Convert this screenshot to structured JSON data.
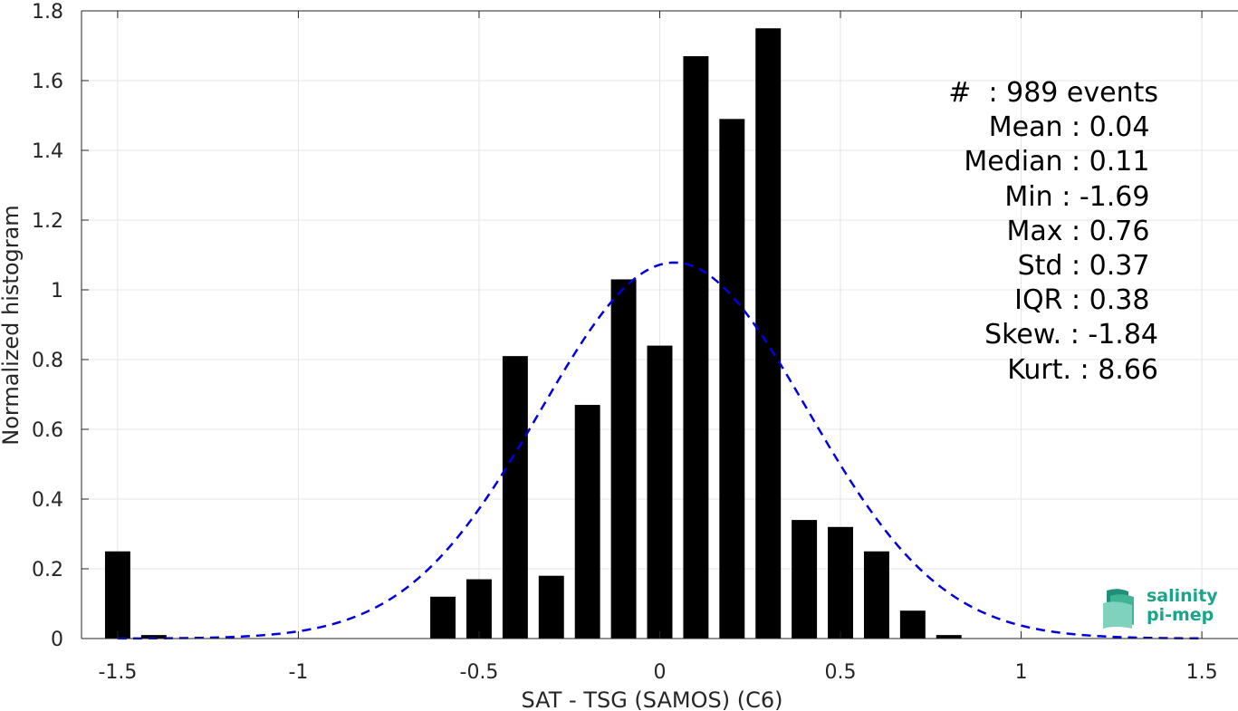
{
  "chart_data": {
    "type": "bar",
    "xlabel": "SAT - TSG (SAMOS) (C6)",
    "ylabel": "Normalized histogram",
    "xlim": [
      -1.6,
      1.6
    ],
    "ylim": [
      0,
      1.8
    ],
    "xticks": [
      -1.5,
      -1,
      -0.5,
      0,
      0.5,
      1,
      1.5
    ],
    "xtick_labels": [
      "-1.5",
      "-1",
      "-0.5",
      "0",
      "0.5",
      "1",
      "1.5"
    ],
    "yticks": [
      0,
      0.2,
      0.4,
      0.6,
      0.8,
      1,
      1.2,
      1.4,
      1.6,
      1.8
    ],
    "ytick_labels": [
      "0",
      "0.2",
      "0.4",
      "0.6",
      "0.8",
      "1",
      "1.2",
      "1.4",
      "1.6",
      "1.8"
    ],
    "grid": true,
    "bar_width": 0.07,
    "bars": {
      "x": [
        -1.5,
        -1.4,
        -0.6,
        -0.5,
        -0.4,
        -0.3,
        -0.2,
        -0.1,
        0.0,
        0.1,
        0.2,
        0.3,
        0.4,
        0.5,
        0.6,
        0.7,
        0.8
      ],
      "values": [
        0.25,
        0.01,
        0.12,
        0.17,
        0.81,
        0.18,
        0.67,
        1.03,
        0.84,
        1.67,
        1.49,
        1.75,
        0.34,
        0.32,
        0.25,
        0.08,
        0.01
      ]
    },
    "fit_curve": {
      "style": "dashed",
      "color": "#0000e0",
      "mean": 0.04,
      "std": 0.37,
      "x_range": [
        -1.5,
        1.5
      ]
    },
    "bar_color": "#000000"
  },
  "stats": [
    "#  : 989 events",
    "Mean : 0.04 ",
    "Median : 0.11 ",
    "Min : -1.69 ",
    "Max : 0.76 ",
    "Std : 0.37 ",
    "IQR : 0.38 ",
    "Skew. : -1.84",
    "Kurt. : 8.66"
  ],
  "logo": {
    "line1": "salinity",
    "line2": "pi-mep",
    "color": "#1aa58a"
  }
}
